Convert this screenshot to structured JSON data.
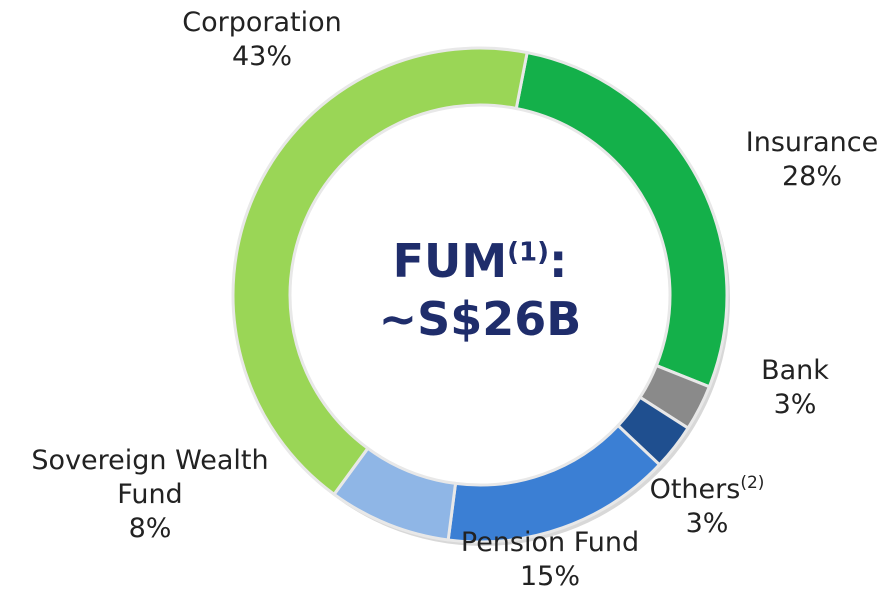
{
  "chart_data": {
    "type": "donut",
    "center_label": {
      "text": "FUM",
      "superscript": "(1)",
      "suffix": ":",
      "value": "~S$26B"
    },
    "categories": [
      "Insurance",
      "Bank",
      "Others",
      "Pension Fund",
      "Sovereign Wealth Fund",
      "Corporation"
    ],
    "superscripts": [
      null,
      null,
      "(2)",
      null,
      null,
      null
    ],
    "values": [
      28,
      3,
      3,
      15,
      8,
      43
    ],
    "value_labels": [
      "28%",
      "3%",
      "3%",
      "15%",
      "8%",
      "43%"
    ],
    "colors": [
      "#14b04a",
      "#8a8a8a",
      "#1f4f8f",
      "#3b7fd4",
      "#8fb6e6",
      "#9ad656"
    ]
  }
}
